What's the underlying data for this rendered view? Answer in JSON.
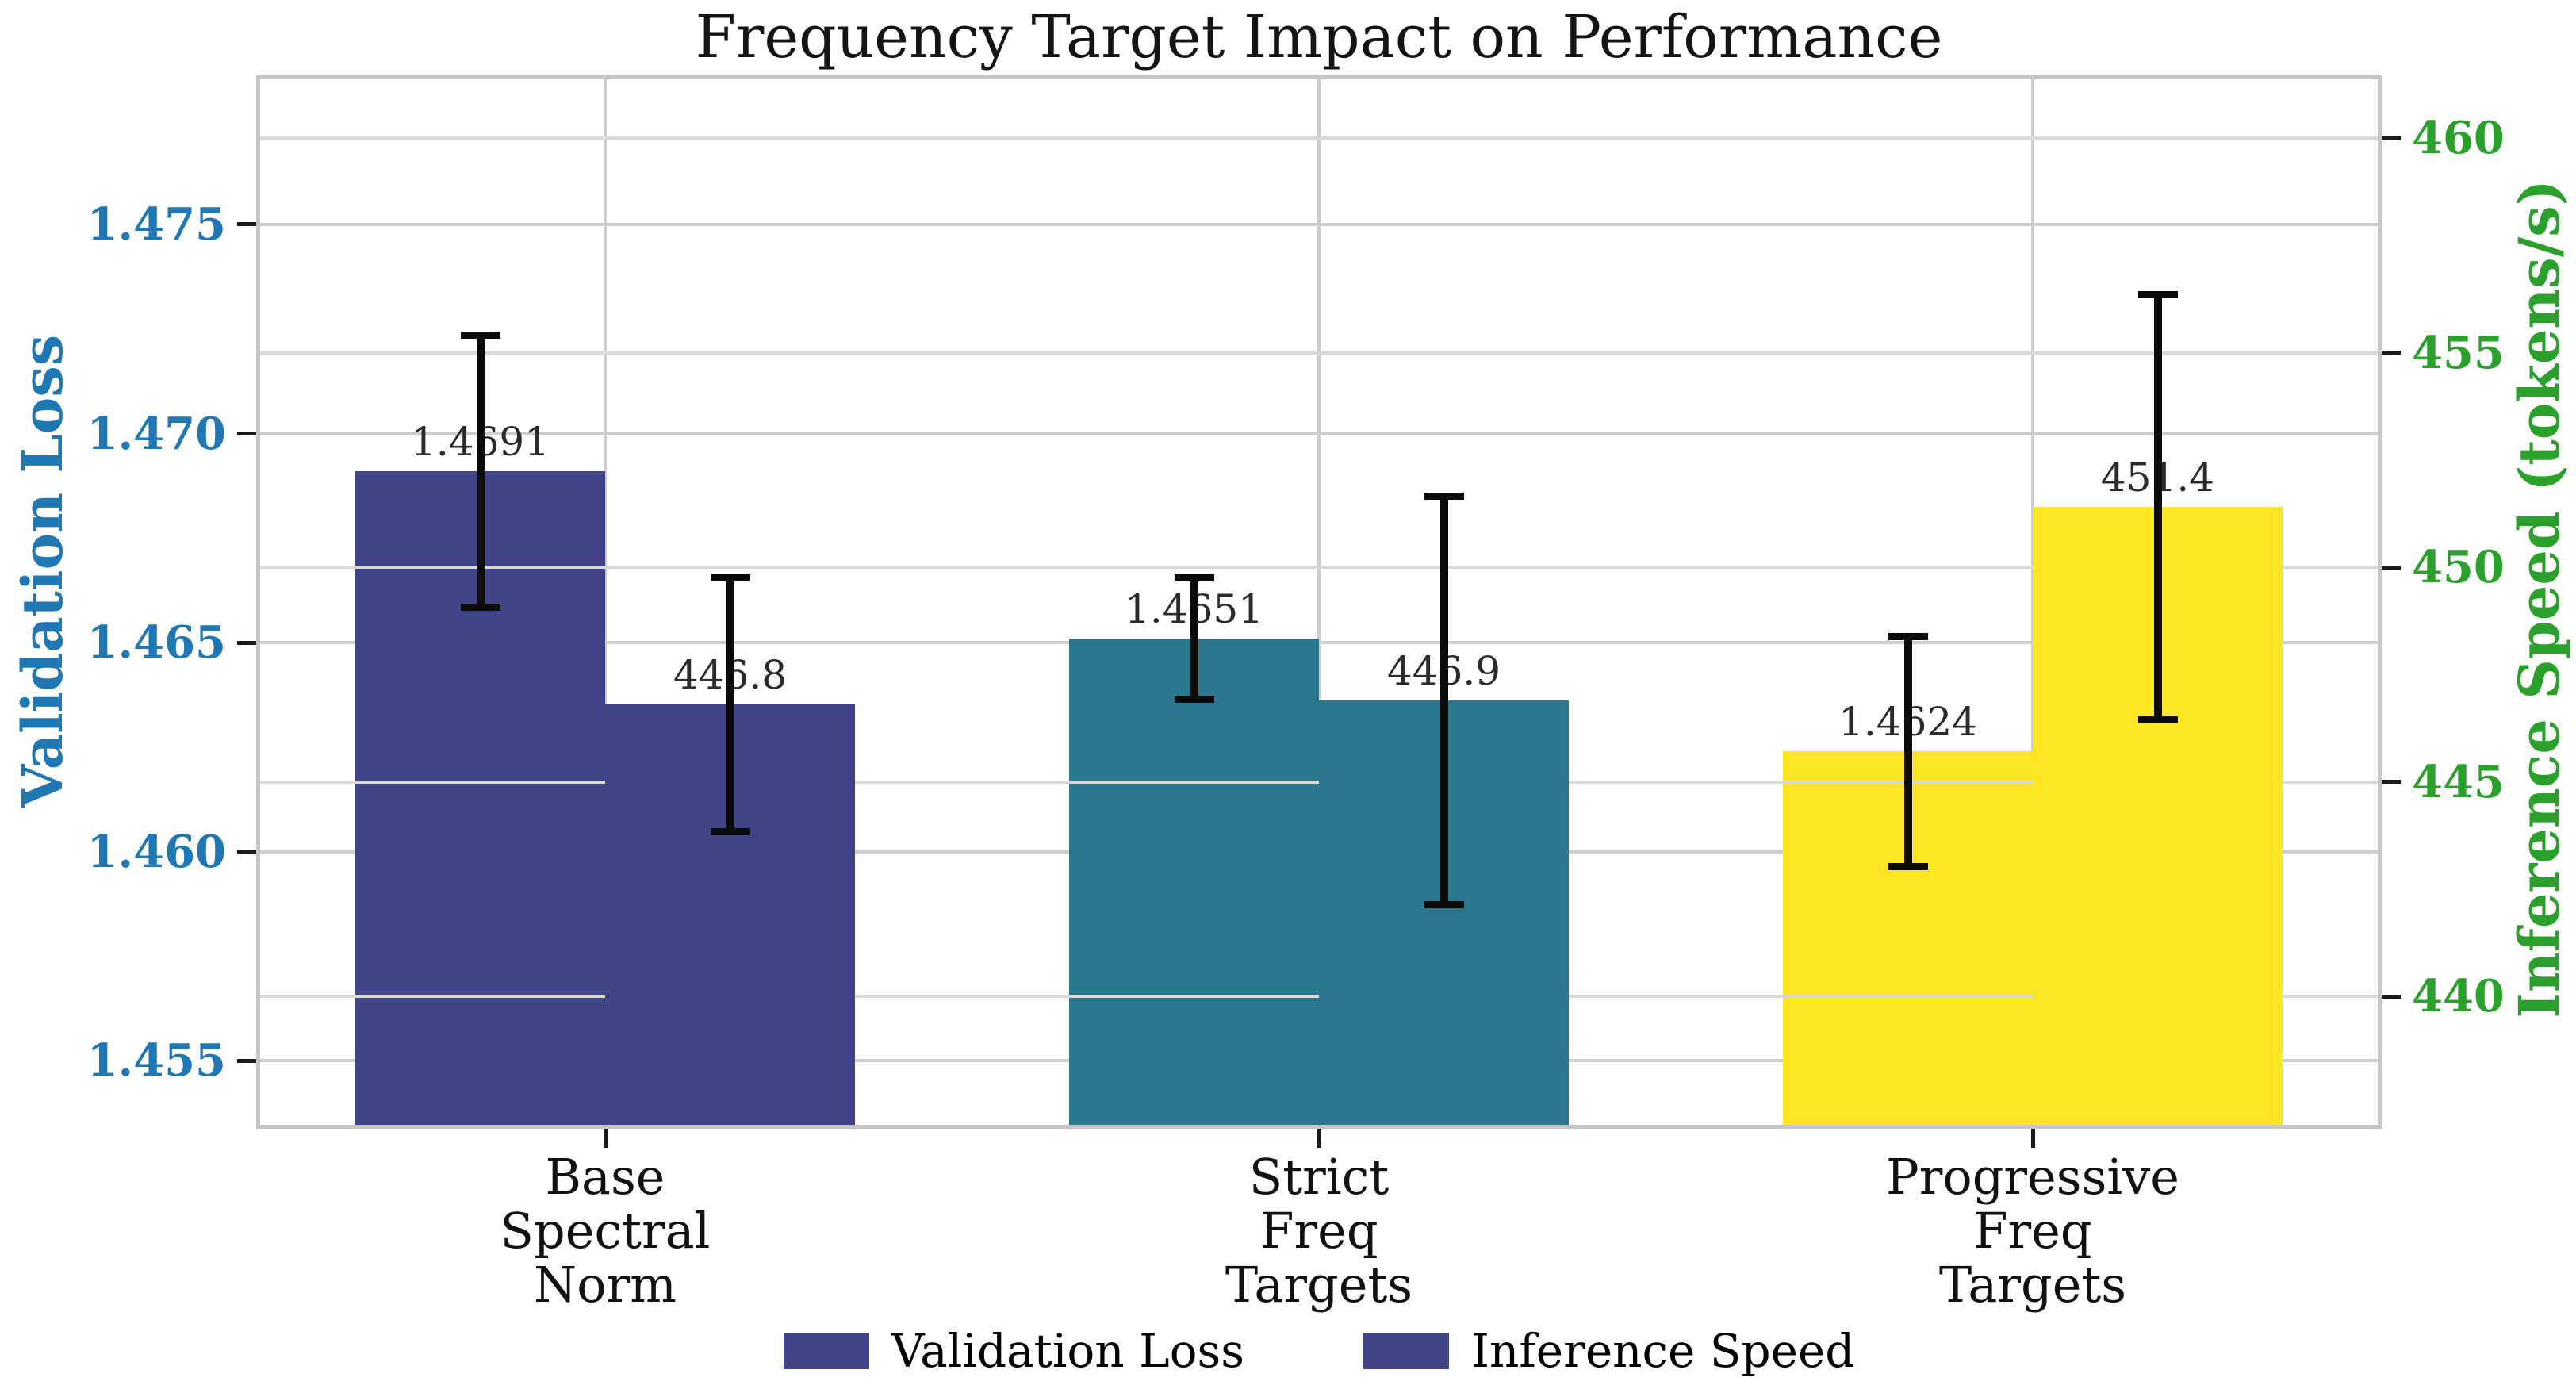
{
  "chart_data": {
    "type": "bar",
    "title": "Frequency Target Impact on Performance",
    "categories": [
      [
        "Base",
        "Spectral",
        "Norm"
      ],
      [
        "Strict",
        "Freq",
        "Targets"
      ],
      [
        "Progressive",
        "Freq",
        "Targets"
      ]
    ],
    "category_colors": [
      "#414487",
      "#2a788e",
      "#fde725"
    ],
    "series": [
      {
        "name": "Validation Loss",
        "axis": "left",
        "values": [
          1.4691,
          1.4651,
          1.4624
        ],
        "errors": [
          0.0033,
          0.0015,
          0.0028
        ],
        "labels": [
          "1.4691",
          "1.4651",
          "1.4624"
        ]
      },
      {
        "name": "Inference Speed",
        "axis": "right",
        "values": [
          446.8,
          446.9,
          451.4
        ],
        "errors": [
          3.0,
          4.8,
          5.0
        ],
        "labels": [
          "446.8",
          "446.9",
          "451.4"
        ]
      }
    ],
    "left_axis": {
      "label": "Validation Loss",
      "color": "#1f77b4",
      "ticks": [
        1.455,
        1.46,
        1.465,
        1.47,
        1.475
      ],
      "tick_labels": [
        "1.455",
        "1.460",
        "1.465",
        "1.470",
        "1.475"
      ],
      "range": [
        1.45347,
        1.47847
      ]
    },
    "right_axis": {
      "label": "Inference Speed (tokens/s)",
      "color": "#2ca02c",
      "ticks": [
        440,
        445,
        450,
        455,
        460
      ],
      "tick_labels": [
        "440",
        "445",
        "450",
        "455",
        "460"
      ],
      "range": [
        437.01,
        461.37
      ]
    },
    "legend": [
      {
        "label": "Validation Loss",
        "color": "#414487"
      },
      {
        "label": "Inference Speed",
        "color": "#414487"
      }
    ],
    "grid": true,
    "legend_position": "bottom-center",
    "error_bar_color": "#0b0b0b"
  }
}
